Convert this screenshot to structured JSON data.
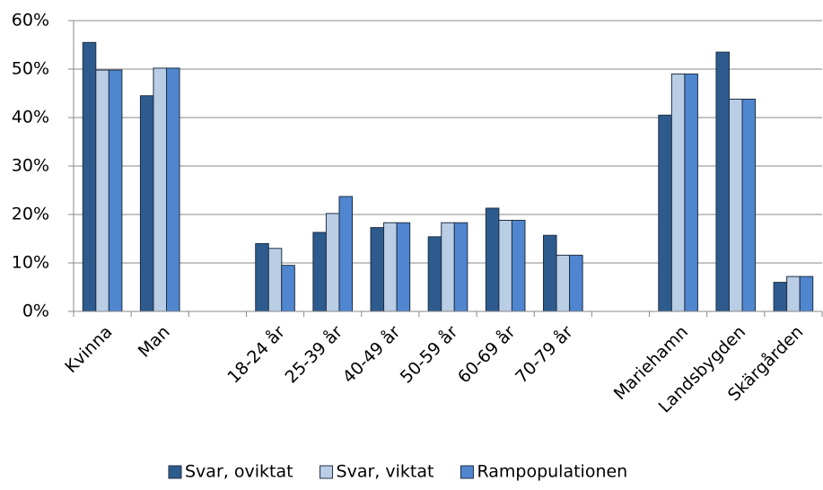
{
  "chart_data": {
    "type": "bar",
    "categories": [
      "Kvinna",
      "Man",
      null,
      "18-24 år",
      "25-39 år",
      "40-49 år",
      "50-59 år",
      "60-69 år",
      "70-79 år",
      null,
      "Mariehamn",
      "Landsbygden",
      "Skärgården"
    ],
    "series": [
      {
        "name": "Svar, oviktat",
        "color": "#2e5b8e",
        "values": [
          55.5,
          44.5,
          null,
          14,
          16.3,
          17.3,
          15.4,
          21.3,
          15.7,
          null,
          40.5,
          53.5,
          6
        ]
      },
      {
        "name": "Svar, viktat",
        "color": "#b9cde5",
        "values": [
          49.8,
          50.2,
          null,
          13,
          20.2,
          18.3,
          18.3,
          18.8,
          11.6,
          null,
          49,
          43.8,
          7.2
        ]
      },
      {
        "name": "Rampopulationen",
        "color": "#4f86cf",
        "values": [
          49.8,
          50.2,
          null,
          9.5,
          23.7,
          18.3,
          18.3,
          18.8,
          11.6,
          null,
          49,
          43.8,
          7.2
        ]
      }
    ],
    "ylim": [
      0,
      60
    ],
    "yticks": [
      {
        "value": 0,
        "label": "0%"
      },
      {
        "value": 10,
        "label": "10%"
      },
      {
        "value": 20,
        "label": "20%"
      },
      {
        "value": 30,
        "label": "30%"
      },
      {
        "value": 40,
        "label": "40%"
      },
      {
        "value": 50,
        "label": "50%"
      },
      {
        "value": 60,
        "label": "60%"
      }
    ],
    "grid": true,
    "legend": "bottom"
  }
}
